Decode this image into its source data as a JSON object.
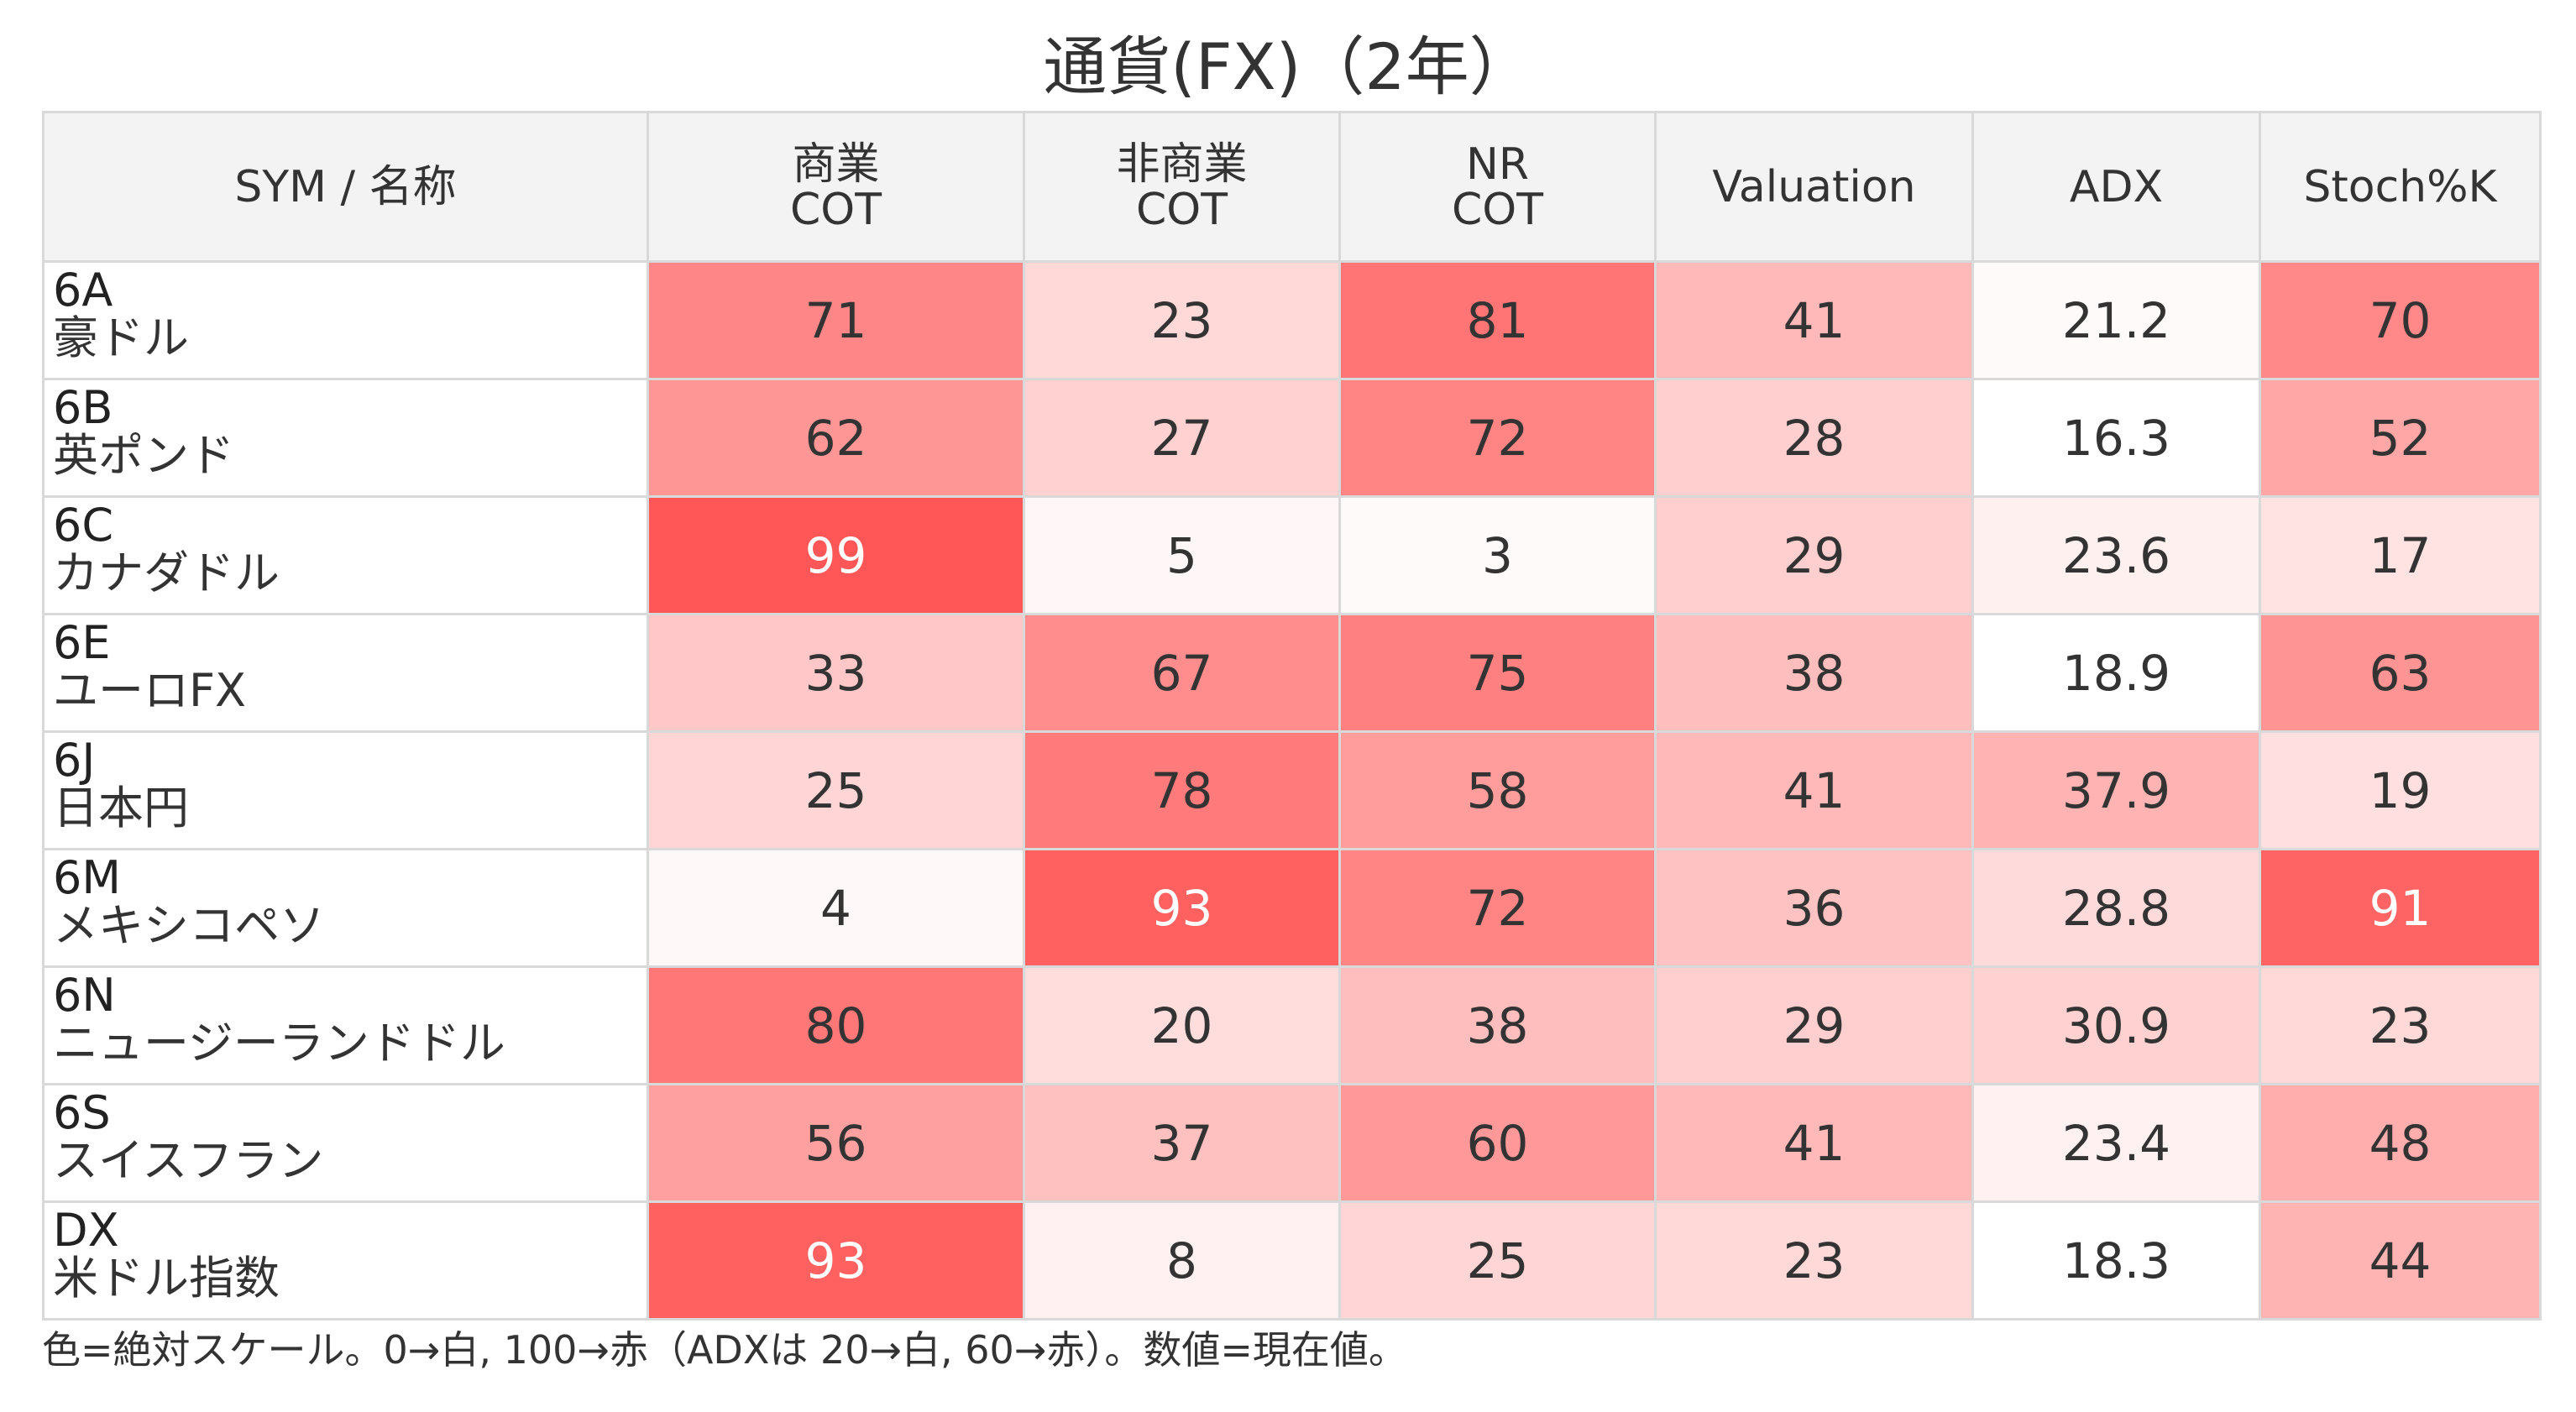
{
  "title": "通貨(FX)（2年）",
  "footnote": "色=絶対スケール。0→白, 100→赤（ADXは 20→白, 60→赤）。数値=現在値。",
  "colors": {
    "low": "#ffffff",
    "high": "#ff5555",
    "header_bg": "#f3f3f3",
    "grid": "#d9d9d9",
    "text_dark": "#333333",
    "text_light": "#ffffff"
  },
  "headers": {
    "name": "SYM / 名称",
    "c1_line1": "商業",
    "c1_line2": "COT",
    "c2_line1": "非商業",
    "c2_line2": "COT",
    "c3_line1": "NR",
    "c3_line2": "COT",
    "c4": "Valuation",
    "c5": "ADX",
    "c6": "Stoch%K"
  },
  "chart_data": {
    "type": "heatmap",
    "title": "通貨(FX)（2年）",
    "columns": [
      "商業 COT",
      "非商業 COT",
      "NR COT",
      "Valuation",
      "ADX",
      "Stoch%K"
    ],
    "color_scale": "0→白, 100→赤（ADXは 20→白, 60→赤）",
    "rows": [
      {
        "sym": "6A",
        "name": "豪ドル",
        "values": [
          "71",
          "23",
          "81",
          "41",
          "21.2",
          "70"
        ]
      },
      {
        "sym": "6B",
        "name": "英ポンド",
        "values": [
          "62",
          "27",
          "72",
          "28",
          "16.3",
          "52"
        ]
      },
      {
        "sym": "6C",
        "name": "カナダドル",
        "values": [
          "99",
          "5",
          "3",
          "29",
          "23.6",
          "17"
        ]
      },
      {
        "sym": "6E",
        "name": "ユーロFX",
        "values": [
          "33",
          "67",
          "75",
          "38",
          "18.9",
          "63"
        ]
      },
      {
        "sym": "6J",
        "name": "日本円",
        "values": [
          "25",
          "78",
          "58",
          "41",
          "37.9",
          "19"
        ]
      },
      {
        "sym": "6M",
        "name": "メキシコペソ",
        "values": [
          "4",
          "93",
          "72",
          "36",
          "28.8",
          "91"
        ]
      },
      {
        "sym": "6N",
        "name": "ニュージーランドドル",
        "values": [
          "80",
          "20",
          "38",
          "29",
          "30.9",
          "23"
        ]
      },
      {
        "sym": "6S",
        "name": "スイスフラン",
        "values": [
          "56",
          "37",
          "60",
          "41",
          "23.4",
          "48"
        ]
      },
      {
        "sym": "DX",
        "name": "米ドル指数",
        "values": [
          "93",
          "8",
          "25",
          "23",
          "18.3",
          "44"
        ]
      }
    ]
  }
}
